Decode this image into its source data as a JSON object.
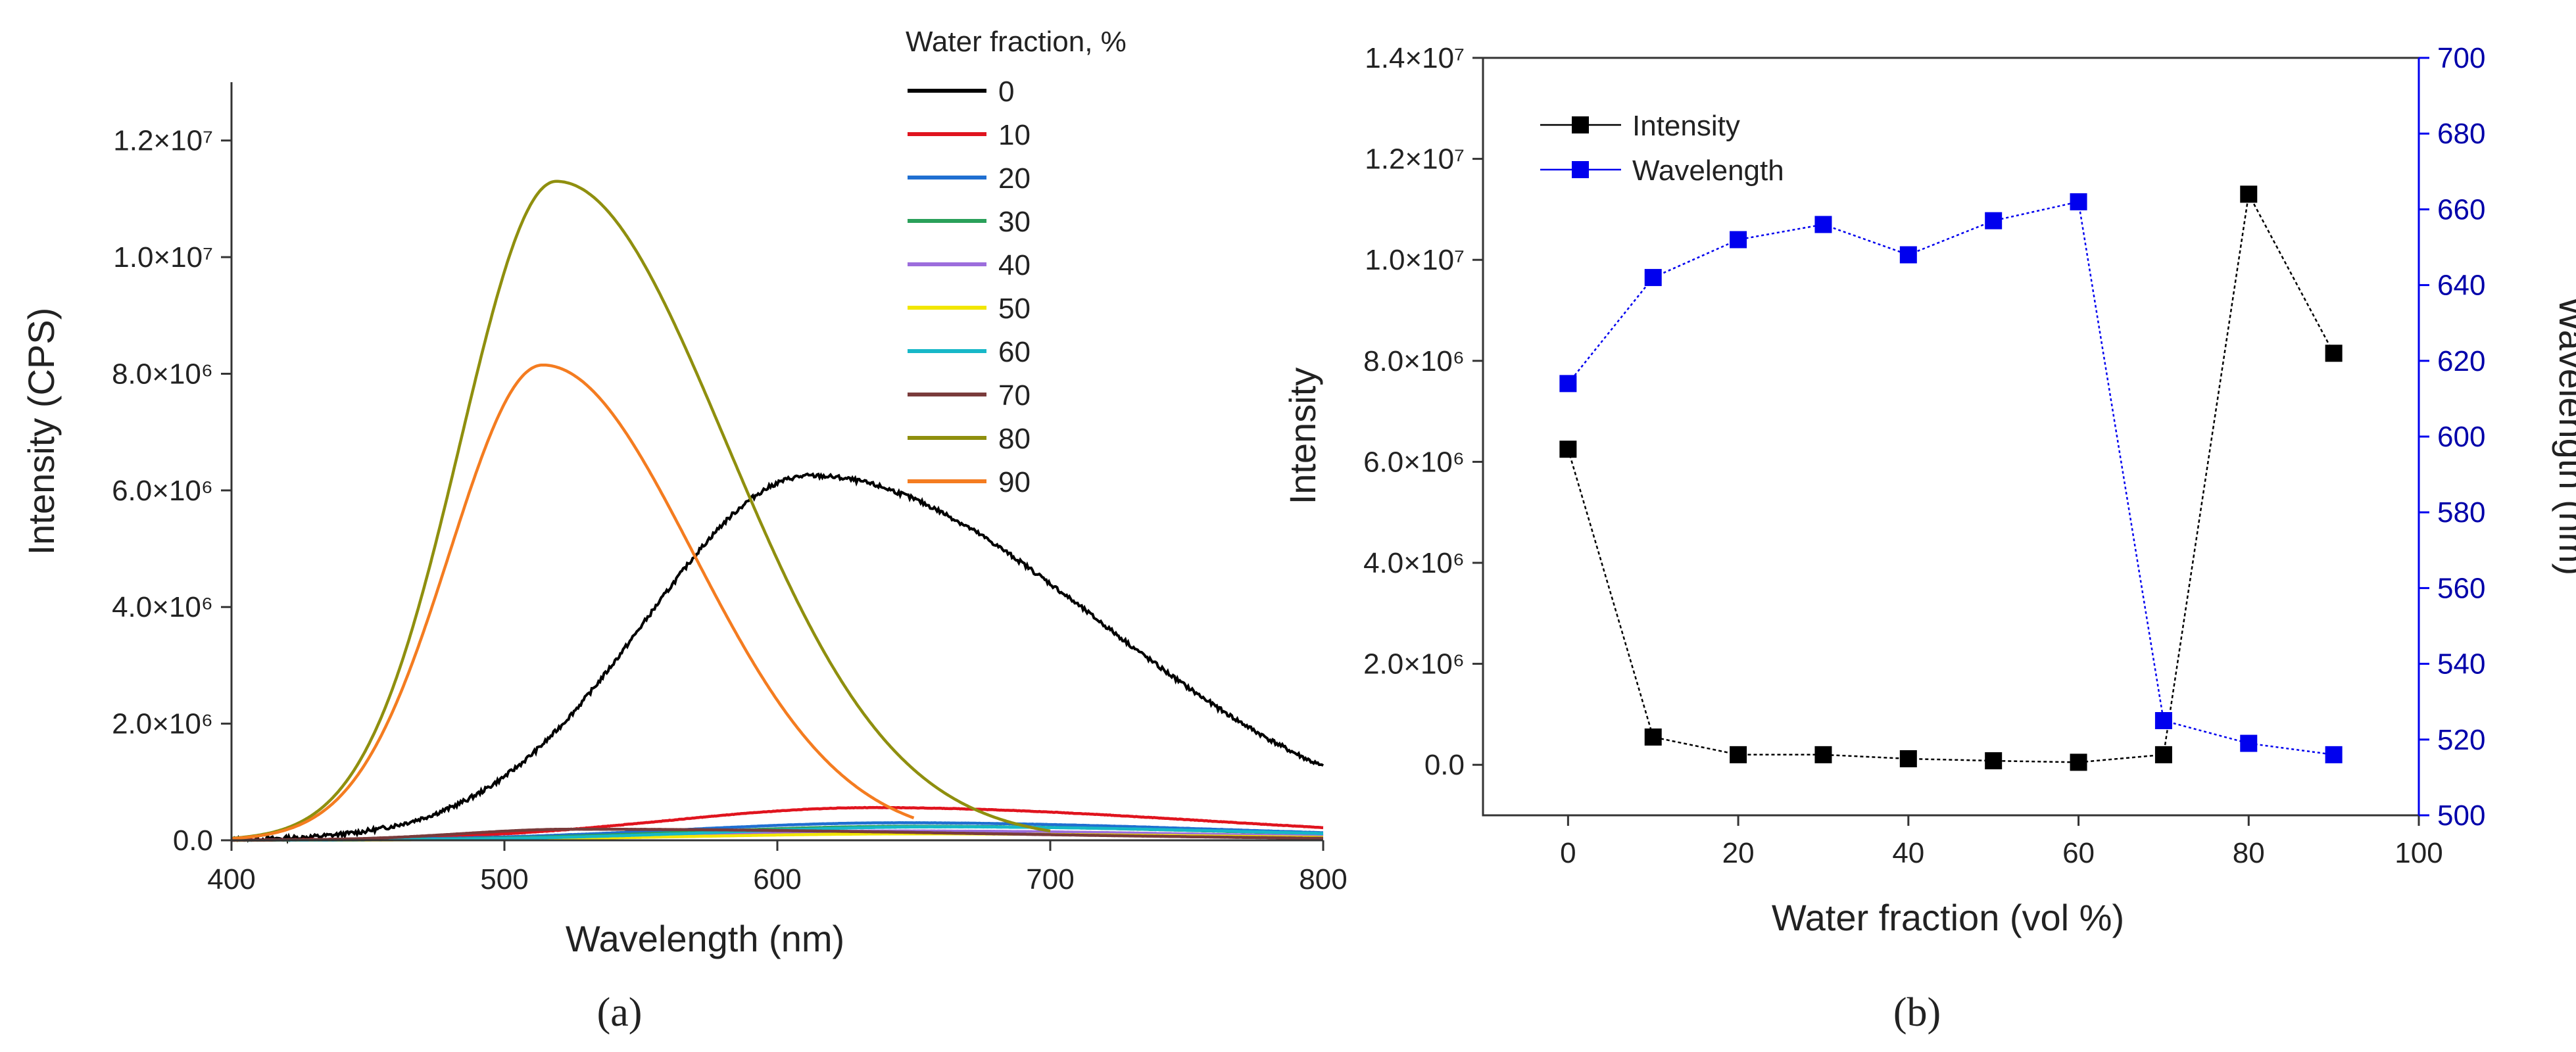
{
  "panel_labels": [
    "(a)",
    "(b)"
  ],
  "chart_data": [
    {
      "type": "line",
      "panel": "(a)",
      "title": "",
      "xlabel": "Wavelength (nm)",
      "ylabel": "Intensity (CPS)",
      "xlim": [
        400,
        800
      ],
      "ylim": [
        0,
        13000000
      ],
      "xticks": [
        400,
        500,
        600,
        700,
        800
      ],
      "xtick_labels": [
        "400",
        "500",
        "600",
        "700",
        "800"
      ],
      "yticks": [
        0,
        2000000,
        4000000,
        6000000,
        8000000,
        10000000,
        12000000
      ],
      "ytick_labels": [
        "0.0",
        "2.0×10⁶",
        "4.0×10⁶",
        "6.0×10⁶",
        "8.0×10⁶",
        "1.0×10⁷",
        "1.2×10⁷"
      ],
      "legend_title": "Water fraction, %",
      "legend_position": "top-right",
      "series": [
        {
          "name": "0",
          "color": "#000000",
          "peak_x": 612,
          "peak_y": 6250000,
          "start": 400,
          "end": 800,
          "sigma_left": 60,
          "sigma_right": 105,
          "noisy": true
        },
        {
          "name": "10",
          "color": "#e0141e",
          "peak_x": 635,
          "peak_y": 560000,
          "start": 400,
          "end": 800,
          "sigma_left": 75,
          "sigma_right": 120,
          "noisy": true
        },
        {
          "name": "20",
          "color": "#1f6fd1",
          "peak_x": 645,
          "peak_y": 300000,
          "start": 400,
          "end": 800,
          "sigma_left": 80,
          "sigma_right": 120,
          "noisy": true
        },
        {
          "name": "30",
          "color": "#2aa05a",
          "peak_x": 650,
          "peak_y": 240000,
          "start": 400,
          "end": 800,
          "sigma_left": 80,
          "sigma_right": 120,
          "noisy": true
        },
        {
          "name": "40",
          "color": "#9c6ddc",
          "peak_x": 645,
          "peak_y": 160000,
          "start": 400,
          "end": 800,
          "sigma_left": 80,
          "sigma_right": 120,
          "noisy": true
        },
        {
          "name": "50",
          "color": "#f2e600",
          "peak_x": 650,
          "peak_y": 110000,
          "start": 400,
          "end": 800,
          "sigma_left": 80,
          "sigma_right": 120,
          "noisy": true
        },
        {
          "name": "60",
          "color": "#17b8c8",
          "peak_x": 660,
          "peak_y": 230000,
          "start": 400,
          "end": 800,
          "sigma_left": 80,
          "sigma_right": 120,
          "noisy": true
        },
        {
          "name": "70",
          "color": "#7a3b3b",
          "peak_x": 525,
          "peak_y": 190000,
          "start": 400,
          "end": 800,
          "sigma_left": 40,
          "sigma_right": 150,
          "noisy": true
        },
        {
          "name": "80",
          "color": "#8f8f0e",
          "peak_x": 519,
          "peak_y": 11300000,
          "start": 400,
          "end": 700,
          "sigma_left": 35,
          "sigma_right": 62,
          "noisy": false
        },
        {
          "name": "90",
          "color": "#f47c20",
          "peak_x": 514,
          "peak_y": 8150000,
          "start": 400,
          "end": 650,
          "sigma_left": 34,
          "sigma_right": 55,
          "noisy": false
        }
      ]
    },
    {
      "type": "scatter",
      "panel": "(b)",
      "title": "",
      "xlabel": "Water fraction (vol %)",
      "ylabel": "Intensity",
      "y2label": "Wavelength (nm)",
      "xlim": [
        -10,
        100
      ],
      "ylim": [
        -1000000,
        14000000
      ],
      "y2lim": [
        500,
        700
      ],
      "xticks": [
        0,
        20,
        40,
        60,
        80,
        100
      ],
      "xtick_labels": [
        "0",
        "20",
        "40",
        "60",
        "80",
        "100"
      ],
      "yticks": [
        0,
        2000000,
        4000000,
        6000000,
        8000000,
        10000000,
        12000000,
        14000000
      ],
      "ytick_labels": [
        "0.0",
        "2.0×10⁶",
        "4.0×10⁶",
        "6.0×10⁶",
        "8.0×10⁶",
        "1.0×10⁷",
        "1.2×10⁷",
        "1.4×10⁷"
      ],
      "y2ticks": [
        500,
        520,
        540,
        560,
        580,
        600,
        620,
        640,
        660,
        680,
        700
      ],
      "y2tick_labels": [
        "500",
        "520",
        "540",
        "560",
        "580",
        "600",
        "620",
        "640",
        "660",
        "680",
        "700"
      ],
      "legend_position": "top-left",
      "x": [
        0,
        10,
        20,
        30,
        40,
        50,
        60,
        70,
        80,
        90
      ],
      "series": [
        {
          "name": "Intensity",
          "axis": "left",
          "color": "#000000",
          "values": [
            6250000,
            550000,
            200000,
            200000,
            120000,
            80000,
            50000,
            200000,
            11300000,
            8150000
          ]
        },
        {
          "name": "Wavelength",
          "axis": "right",
          "color": "#0000ee",
          "values": [
            614,
            642,
            652,
            656,
            648,
            657,
            662,
            525,
            519,
            516
          ]
        }
      ]
    }
  ]
}
